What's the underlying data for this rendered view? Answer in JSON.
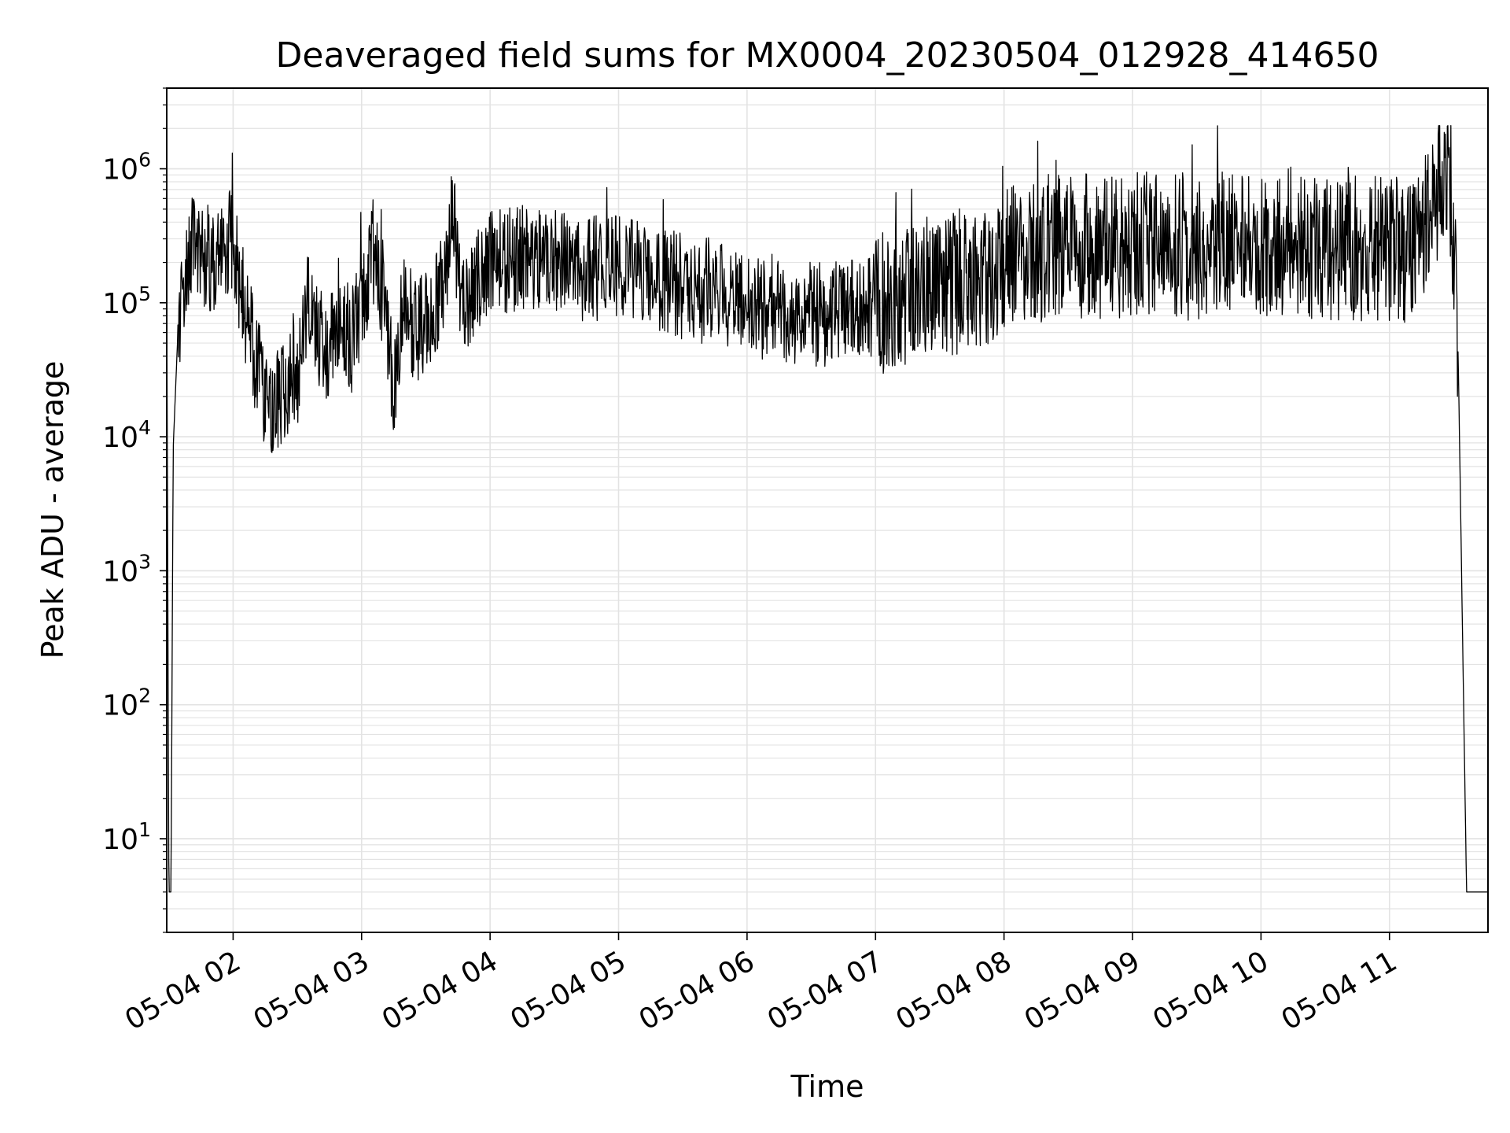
{
  "chart_data": {
    "type": "line",
    "title": "Deaveraged field sums for MX0004_20230504_012928_414650",
    "xlabel": "Time",
    "ylabel": "Peak ADU - average",
    "y_scale": "log",
    "grid": true,
    "line_color": "#000000",
    "grid_color": "#e3e3e3",
    "xlim": [
      "2023-05-04 01:29",
      "2023-05-04 11:46"
    ],
    "ylim": [
      2,
      4000000
    ],
    "x_ticks": [
      "05-04 02",
      "05-04 03",
      "05-04 04",
      "05-04 05",
      "05-04 06",
      "05-04 07",
      "05-04 08",
      "05-04 09",
      "05-04 10",
      "05-04 11"
    ],
    "y_ticks": [
      {
        "base": "10",
        "exp": "1"
      },
      {
        "base": "10",
        "exp": "2"
      },
      {
        "base": "10",
        "exp": "3"
      },
      {
        "base": "10",
        "exp": "4"
      },
      {
        "base": "10",
        "exp": "5"
      },
      {
        "base": "10",
        "exp": "6"
      }
    ],
    "series": [
      {
        "x": [
          "2023-05-04 01:29",
          "2023-05-04 01:30",
          "2023-05-04 01:31",
          "2023-05-04 01:32",
          "2023-05-04 01:34",
          "2023-05-04 01:36",
          "2023-05-04 01:39",
          "2023-05-04 01:42",
          "2023-05-04 01:45",
          "2023-05-04 01:50",
          "2023-05-04 01:55",
          "2023-05-04 02:00",
          "2023-05-04 02:05",
          "2023-05-04 02:10",
          "2023-05-04 02:15",
          "2023-05-04 02:20",
          "2023-05-04 02:25",
          "2023-05-04 02:30",
          "2023-05-04 02:35",
          "2023-05-04 02:40",
          "2023-05-04 02:45",
          "2023-05-04 02:50",
          "2023-05-04 02:55",
          "2023-05-04 03:00",
          "2023-05-04 03:05",
          "2023-05-04 03:10",
          "2023-05-04 03:15",
          "2023-05-04 03:20",
          "2023-05-04 03:25",
          "2023-05-04 03:30",
          "2023-05-04 03:35",
          "2023-05-04 03:40",
          "2023-05-04 03:42",
          "2023-05-04 03:45",
          "2023-05-04 03:50",
          "2023-05-04 03:55",
          "2023-05-04 04:00",
          "2023-05-04 04:15",
          "2023-05-04 04:30",
          "2023-05-04 04:45",
          "2023-05-04 05:00",
          "2023-05-04 05:15",
          "2023-05-04 05:30",
          "2023-05-04 05:45",
          "2023-05-04 06:00",
          "2023-05-04 06:15",
          "2023-05-04 06:30",
          "2023-05-04 06:45",
          "2023-05-04 07:00",
          "2023-05-04 07:15",
          "2023-05-04 07:30",
          "2023-05-04 07:45",
          "2023-05-04 08:00",
          "2023-05-04 08:15",
          "2023-05-04 08:30",
          "2023-05-04 08:45",
          "2023-05-04 09:00",
          "2023-05-04 09:15",
          "2023-05-04 09:30",
          "2023-05-04 09:45",
          "2023-05-04 10:00",
          "2023-05-04 10:15",
          "2023-05-04 10:30",
          "2023-05-04 10:45",
          "2023-05-04 11:00",
          "2023-05-04 11:10",
          "2023-05-04 11:18",
          "2023-05-04 11:24",
          "2023-05-04 11:28",
          "2023-05-04 11:32",
          "2023-05-04 11:36",
          "2023-05-04 11:46"
        ],
        "y": [
          170000,
          4,
          4,
          8000,
          50000,
          120000,
          200000,
          350000,
          250000,
          200000,
          300000,
          280000,
          100000,
          40000,
          20000,
          18000,
          25000,
          30000,
          100000,
          60000,
          40000,
          100000,
          50000,
          90000,
          250000,
          120000,
          20000,
          100000,
          60000,
          80000,
          100000,
          200000,
          800000,
          150000,
          100000,
          150000,
          200000,
          220000,
          200000,
          180000,
          190000,
          160000,
          130000,
          120000,
          100000,
          90000,
          80000,
          85000,
          100000,
          120000,
          130000,
          150000,
          200000,
          250000,
          280000,
          260000,
          280000,
          270000,
          260000,
          280000,
          250000,
          300000,
          250000,
          250000,
          250000,
          250000,
          400000,
          900000,
          1100000,
          50000,
          4,
          4
        ]
      }
    ]
  }
}
